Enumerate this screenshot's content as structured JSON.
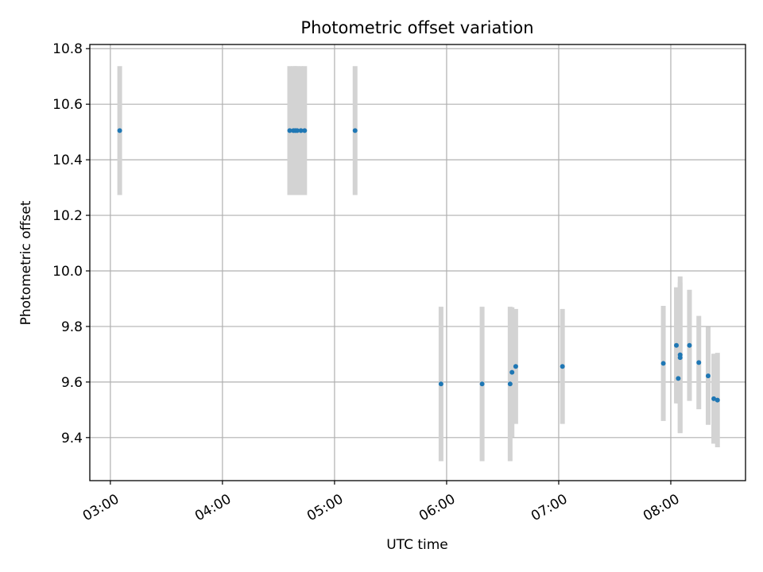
{
  "chart_data": {
    "type": "scatter",
    "title": "Photometric offset variation",
    "xlabel": "UTC time",
    "ylabel": "Photometric offset",
    "x_ticks": [
      "03:00",
      "04:00",
      "05:00",
      "06:00",
      "07:00",
      "08:00"
    ],
    "y_ticks": [
      "9.4",
      "9.6",
      "9.8",
      "10.0",
      "10.2",
      "10.4",
      "10.6",
      "10.8"
    ],
    "xlim": [
      "02:49",
      "08:40"
    ],
    "ylim": [
      9.245,
      10.815
    ],
    "grid": true,
    "colors": {
      "point": "#1f77b4",
      "errorbar": "#d3d3d3",
      "grid": "#b0b0b0"
    },
    "points": [
      {
        "x": "03:05",
        "y": 10.505,
        "err": 0.232
      },
      {
        "x": "04:36",
        "y": 10.505,
        "err": 0.232
      },
      {
        "x": "04:38",
        "y": 10.505,
        "err": 0.232
      },
      {
        "x": "04:39",
        "y": 10.505,
        "err": 0.232
      },
      {
        "x": "04:40",
        "y": 10.505,
        "err": 0.232
      },
      {
        "x": "04:42",
        "y": 10.505,
        "err": 0.232
      },
      {
        "x": "04:44",
        "y": 10.505,
        "err": 0.232
      },
      {
        "x": "05:11",
        "y": 10.505,
        "err": 0.232
      },
      {
        "x": "05:57",
        "y": 9.593,
        "err": 0.278
      },
      {
        "x": "06:19",
        "y": 9.593,
        "err": 0.278
      },
      {
        "x": "06:34",
        "y": 9.593,
        "err": 0.278
      },
      {
        "x": "06:35",
        "y": 9.635,
        "err": 0.234
      },
      {
        "x": "06:37",
        "y": 9.656,
        "err": 0.207
      },
      {
        "x": "07:02",
        "y": 9.656,
        "err": 0.207
      },
      {
        "x": "07:56",
        "y": 9.667,
        "err": 0.207
      },
      {
        "x": "08:03",
        "y": 9.732,
        "err": 0.209
      },
      {
        "x": "08:04",
        "y": 9.613,
        "err": 0.09
      },
      {
        "x": "08:05",
        "y": 9.698,
        "err": 0.282
      },
      {
        "x": "08:05",
        "y": 9.688,
        "err": 0.27
      },
      {
        "x": "08:10",
        "y": 9.732,
        "err": 0.2
      },
      {
        "x": "08:15",
        "y": 9.67,
        "err": 0.168
      },
      {
        "x": "08:20",
        "y": 9.622,
        "err": 0.176
      },
      {
        "x": "08:23",
        "y": 9.54,
        "err": 0.162
      },
      {
        "x": "08:25",
        "y": 9.535,
        "err": 0.17
      }
    ]
  }
}
